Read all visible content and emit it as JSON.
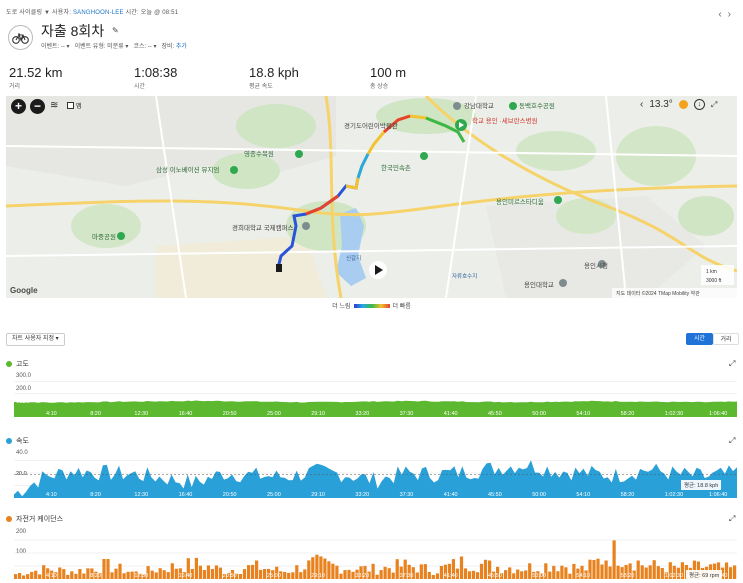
{
  "header": {
    "crumbs_prefix": "도로 사이클링 ▼  사용자:",
    "crumbs_user": "SANGHOON-LEE",
    "crumbs_suffix": "시간: 오늘 @ 08:51",
    "title": "자출 8회차",
    "meta_event": "이벤트: --",
    "meta_event_type": "이벤트 유형: 미분류",
    "meta_course": "코스: --",
    "meta_gear_label": "장비:",
    "meta_gear_link": "추가",
    "prev_icon": "‹",
    "next_icon": "›"
  },
  "stats": [
    {
      "value": "21.52 km",
      "label": "거리"
    },
    {
      "value": "1:08:38",
      "label": "시간"
    },
    {
      "value": "18.8 kph",
      "label": "평균 속도"
    },
    {
      "value": "100 m",
      "label": "총 상승"
    }
  ],
  "map": {
    "zoom_in": "+",
    "zoom_out": "−",
    "map_checkbox_label": "맵",
    "temperature": "13.3°",
    "scale_km": "1 km",
    "scale_ft": "3000 ft",
    "attribution": "지도 데이터 ©2024 TMap Mobility  약관",
    "google": "Google",
    "labels": [
      "강남대학교",
      "동백호수공원",
      "경기도어린이박물관",
      "학교 용인 ·세브란스병원",
      "영종수목원",
      "한국민속촌",
      "삼성 이노베이션 뮤지엄",
      "용인미르스타디움",
      "경희대학교 국제캠퍼스",
      "마중공원",
      "신갈지",
      "자류호수지",
      "용인시청",
      "용인대학교"
    ],
    "legend_slow": "더 느림",
    "legend_fast": "더 빠름"
  },
  "controls": {
    "chart_settings": "차트 사용자 지정 ▾",
    "toggle_time": "시간",
    "toggle_distance": "거리"
  },
  "charts": {
    "elevation": {
      "title": "고도",
      "color": "#5cb82e",
      "y_labels": [
        "300.0",
        "200.0",
        "100.0"
      ]
    },
    "speed": {
      "title": "속도",
      "color": "#2aa0d8",
      "y_labels": [
        "40.0",
        "20.0"
      ],
      "avg": "평균: 18.8 kph"
    },
    "cadence": {
      "title": "자전거 케이던스",
      "color": "#e8821e",
      "y_labels": [
        "200",
        "100"
      ],
      "avg": "평균: 69 rpm"
    },
    "x_ticks": [
      "4:10",
      "8:20",
      "12:30",
      "16:40",
      "20:50",
      "25:00",
      "29:10",
      "33:20",
      "37:30",
      "41:40",
      "45:50",
      "50:00",
      "54:10",
      "58:20",
      "1:02:30",
      "1:06:40"
    ]
  },
  "chart_data": [
    {
      "type": "area",
      "title": "고도",
      "x_unit": "elapsed time",
      "ylim": [
        0,
        300
      ],
      "series": [
        {
          "values": [
            96,
            92,
            95,
            98,
            100,
            103,
            101,
            98,
            94,
            96,
            99,
            102,
            99,
            97,
            95,
            98,
            101,
            99,
            96,
            95,
            97
          ]
        }
      ]
    },
    {
      "type": "area",
      "title": "속도",
      "ylim": [
        0,
        40
      ],
      "series": [
        {
          "values": [
            3,
            17,
            22,
            20,
            19,
            16,
            12,
            20,
            18,
            17,
            21,
            19,
            14,
            20,
            19,
            21,
            24,
            27,
            22,
            20,
            18,
            23,
            19,
            17,
            20
          ]
        }
      ]
    },
    {
      "type": "area",
      "title": "자전거 케이던스",
      "ylim": [
        0,
        200
      ],
      "series": [
        {
          "values": [
            20,
            40,
            30,
            55,
            25,
            45,
            60,
            35,
            50,
            30,
            65,
            45,
            40,
            55,
            35,
            70,
            50,
            45,
            60,
            40,
            110,
            55,
            45,
            50,
            40
          ]
        }
      ]
    }
  ]
}
